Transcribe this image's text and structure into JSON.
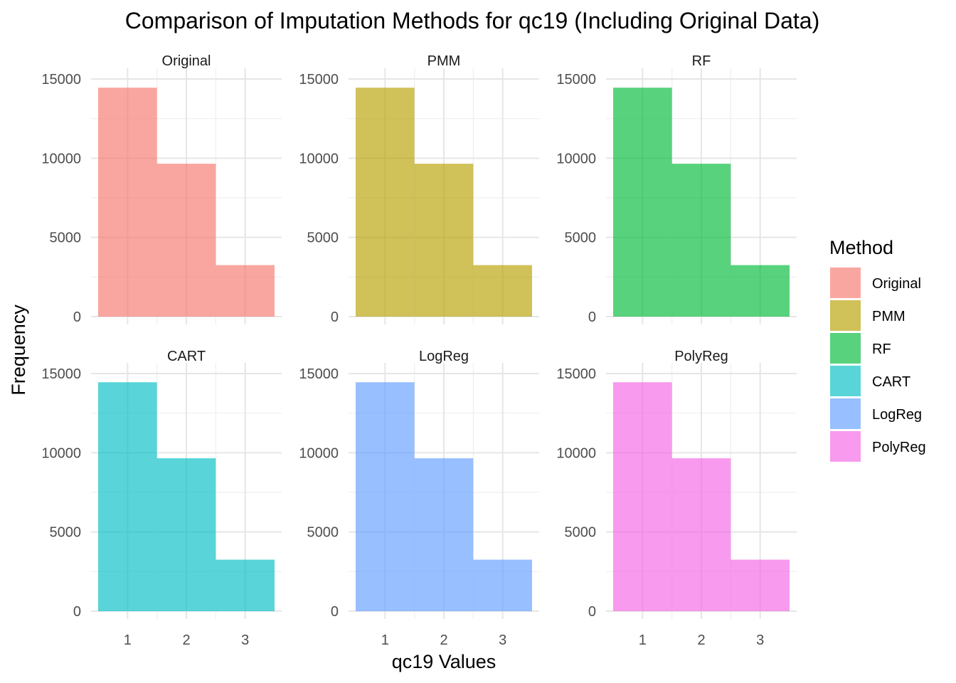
{
  "chart_data": {
    "type": "bar",
    "title": "Comparison of Imputation Methods for qc19 (Including Original Data)",
    "xlabel": "qc19 Values",
    "ylabel": "Frequency",
    "categories": [
      1,
      2,
      3
    ],
    "x_ticks": [
      "1",
      "2",
      "3"
    ],
    "y_ticks": [
      "0",
      "5000",
      "10000",
      "15000"
    ],
    "ylim": [
      0,
      15000
    ],
    "xlim": [
      0.5,
      3.5
    ],
    "grid": true,
    "legend_title": "Method",
    "legend_position": "right",
    "panels": [
      {
        "name": "Original",
        "color": "#F8766D",
        "values": [
          14450,
          9650,
          3250
        ]
      },
      {
        "name": "PMM",
        "color": "#B79F00",
        "values": [
          14450,
          9650,
          3250
        ]
      },
      {
        "name": "RF",
        "color": "#00BA38",
        "values": [
          14450,
          9650,
          3250
        ]
      },
      {
        "name": "CART",
        "color": "#00BFC4",
        "values": [
          14450,
          9650,
          3250
        ]
      },
      {
        "name": "LogReg",
        "color": "#619CFF",
        "values": [
          14450,
          9650,
          3250
        ]
      },
      {
        "name": "PolyReg",
        "color": "#F564E3",
        "values": [
          14450,
          9650,
          3250
        ]
      }
    ]
  }
}
